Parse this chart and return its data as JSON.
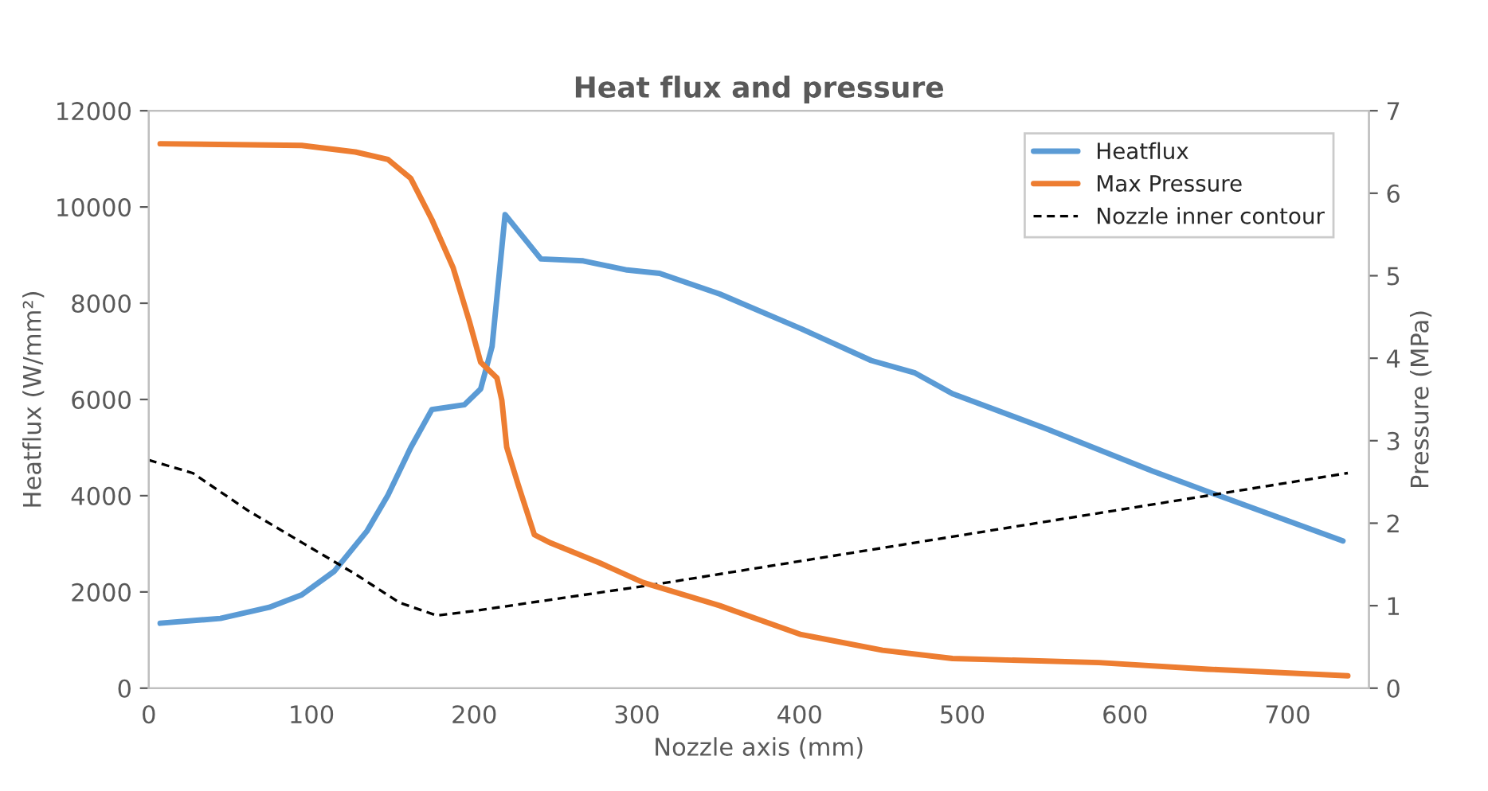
{
  "chart_data": {
    "type": "line",
    "title": "Heat flux and pressure",
    "xlabel": "Nozzle axis (mm)",
    "ylabel": "Heatflux (W/mm²)",
    "y2label": "Pressure (MPa)",
    "xlim": [
      0,
      750
    ],
    "xticks": [
      0,
      100,
      200,
      300,
      400,
      500,
      600,
      700
    ],
    "ylim": [
      0,
      12000
    ],
    "yticks": [
      0,
      2000,
      4000,
      6000,
      8000,
      10000,
      12000
    ],
    "y2lim": [
      0,
      7
    ],
    "y2ticks": [
      0,
      1,
      2,
      3,
      4,
      5,
      6,
      7
    ],
    "grid": false,
    "legend": "top right",
    "series": [
      {
        "name": "Heatflux",
        "color": "#5b9bd5",
        "line_style": "solid",
        "x": [
          7,
          44,
          74,
          94,
          114,
          134,
          147,
          161,
          174,
          194,
          204,
          211,
          219,
          241,
          267,
          294,
          314,
          351,
          401,
          444,
          471,
          494,
          551,
          617,
          657,
          734
        ],
        "values": [
          1350,
          1450,
          1680,
          1940,
          2430,
          3260,
          4010,
          5000,
          5790,
          5890,
          6220,
          7100,
          9840,
          8920,
          8880,
          8690,
          8620,
          8190,
          7470,
          6810,
          6550,
          6120,
          5400,
          4510,
          4010,
          3060
        ]
      },
      {
        "name": "Max Pressure",
        "color": "#ed7d31",
        "line_style": "solid",
        "axis": "y2",
        "x": [
          7,
          94,
          127,
          147,
          161,
          174,
          187,
          197,
          204,
          214,
          217,
          220,
          227,
          237,
          247,
          277,
          304,
          351,
          401,
          451,
          494,
          584,
          651,
          737
        ],
        "values": [
          6.6,
          6.58,
          6.5,
          6.41,
          6.18,
          5.68,
          5.1,
          4.45,
          3.95,
          3.76,
          3.49,
          2.92,
          2.47,
          1.86,
          1.76,
          1.52,
          1.28,
          1.0,
          0.65,
          0.46,
          0.36,
          0.31,
          0.23,
          0.15
        ]
      },
      {
        "name": "Nozzle inner contour",
        "color": "#000000",
        "line_style": "dashed",
        "x": [
          0,
          27,
          61,
          94,
          127,
          154,
          177,
          201,
          314,
          737
        ],
        "values": [
          4740,
          4470,
          3690,
          3030,
          2370,
          1780,
          1510,
          1610,
          2170,
          4470
        ]
      }
    ]
  }
}
